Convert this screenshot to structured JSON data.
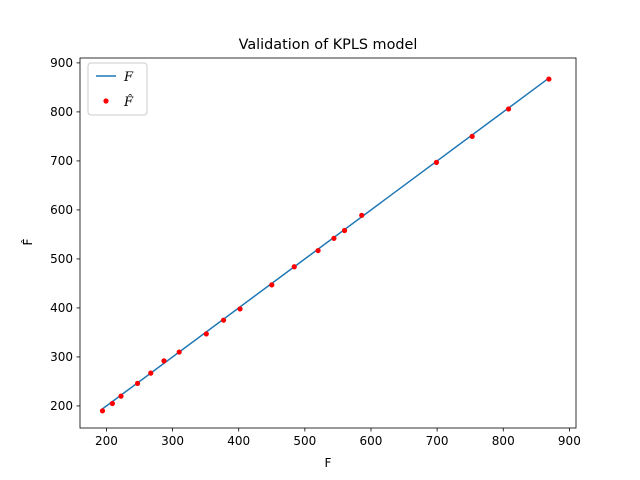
{
  "chart_data": {
    "type": "scatter",
    "title": "Validation of KPLS model",
    "xlabel": "F",
    "ylabel": "F̂",
    "xlim": [
      160,
      910
    ],
    "ylim": [
      155,
      910
    ],
    "xticks": [
      200,
      300,
      400,
      500,
      600,
      700,
      800,
      900
    ],
    "yticks": [
      200,
      300,
      400,
      500,
      600,
      700,
      800,
      900
    ],
    "grid": false,
    "legend_position": "top-left",
    "series": [
      {
        "name": "F",
        "kind": "line",
        "color": "#1f77b4",
        "x": [
          194,
          867
        ],
        "y": [
          194,
          867
        ]
      },
      {
        "name": "F̂",
        "kind": "scatter",
        "color": "#ff0000",
        "x": [
          194,
          209,
          222,
          247,
          267,
          287,
          310,
          351,
          377,
          402,
          450,
          484,
          520,
          544,
          560,
          586,
          699,
          753,
          808,
          869
        ],
        "y": [
          190,
          205,
          220,
          246,
          267,
          292,
          310,
          347,
          375,
          398,
          447,
          484,
          517,
          542,
          558,
          589,
          697,
          750,
          806,
          867
        ]
      }
    ]
  }
}
